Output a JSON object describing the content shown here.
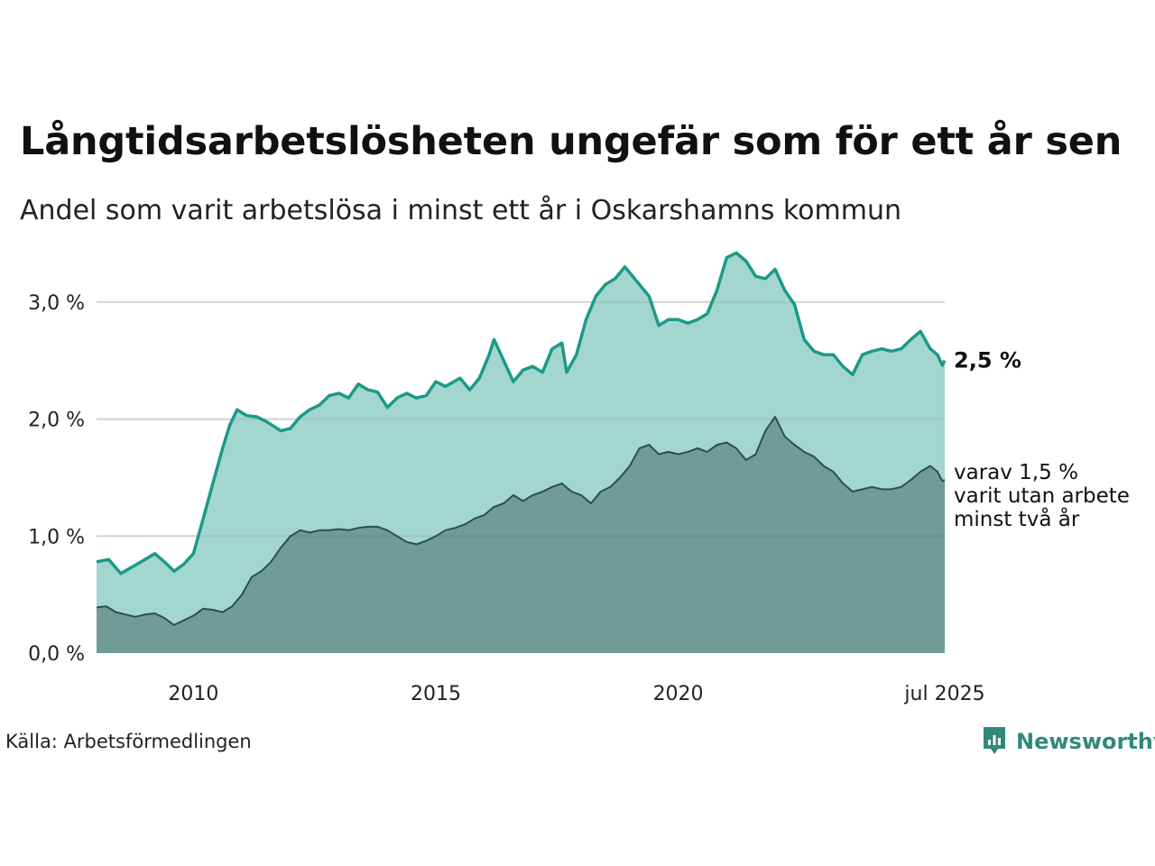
{
  "title": "Långtidsarbetslösheten ungefär som för ett år sen",
  "subtitle": "Andel som varit arbetslösa i minst ett år i Oskarshamns kommun",
  "source": "Källa: Arbetsförmedlingen",
  "logo_text": "Newsworthy",
  "colors": {
    "total_line": "#1a9a88",
    "total_fill": "#a4d6d0",
    "long_line": "#2c4f49",
    "long_fill": "#719c96",
    "grid": "#e0e0e0"
  },
  "end_labels": {
    "total": "2,5 %",
    "long_lines": [
      "varav 1,5 %",
      "varit utan arbete",
      "minst två år"
    ]
  },
  "chart_data": {
    "type": "area",
    "x_start": 2008.0,
    "x_end": 2025.5,
    "ylim": [
      0,
      3.5
    ],
    "yticks": [
      0,
      1,
      2,
      3
    ],
    "ytick_labels": [
      "0,0 %",
      "1,0 %",
      "2,0 %",
      "3,0 %"
    ],
    "xticks": [
      2010,
      2015,
      2020,
      2025.5
    ],
    "xtick_labels": [
      "2010",
      "2015",
      "2020",
      "jul 2025"
    ],
    "grid": "horizontal",
    "series": [
      {
        "key": "total",
        "points": [
          [
            2008.0,
            0.78
          ],
          [
            2008.25,
            0.8
          ],
          [
            2008.5,
            0.68
          ],
          [
            2008.75,
            0.74
          ],
          [
            2009.0,
            0.8
          ],
          [
            2009.2,
            0.85
          ],
          [
            2009.4,
            0.78
          ],
          [
            2009.6,
            0.7
          ],
          [
            2009.8,
            0.76
          ],
          [
            2010.0,
            0.85
          ],
          [
            2010.2,
            1.15
          ],
          [
            2010.4,
            1.45
          ],
          [
            2010.6,
            1.75
          ],
          [
            2010.75,
            1.95
          ],
          [
            2010.9,
            2.08
          ],
          [
            2011.1,
            2.03
          ],
          [
            2011.3,
            2.02
          ],
          [
            2011.5,
            1.98
          ],
          [
            2011.8,
            1.9
          ],
          [
            2012.0,
            1.92
          ],
          [
            2012.2,
            2.02
          ],
          [
            2012.4,
            2.08
          ],
          [
            2012.6,
            2.12
          ],
          [
            2012.8,
            2.2
          ],
          [
            2013.0,
            2.22
          ],
          [
            2013.2,
            2.18
          ],
          [
            2013.4,
            2.3
          ],
          [
            2013.6,
            2.25
          ],
          [
            2013.8,
            2.23
          ],
          [
            2014.0,
            2.1
          ],
          [
            2014.2,
            2.18
          ],
          [
            2014.4,
            2.22
          ],
          [
            2014.6,
            2.18
          ],
          [
            2014.8,
            2.2
          ],
          [
            2015.0,
            2.32
          ],
          [
            2015.2,
            2.28
          ],
          [
            2015.5,
            2.35
          ],
          [
            2015.7,
            2.25
          ],
          [
            2015.9,
            2.35
          ],
          [
            2016.1,
            2.55
          ],
          [
            2016.2,
            2.68
          ],
          [
            2016.4,
            2.5
          ],
          [
            2016.6,
            2.32
          ],
          [
            2016.8,
            2.42
          ],
          [
            2017.0,
            2.45
          ],
          [
            2017.2,
            2.4
          ],
          [
            2017.4,
            2.6
          ],
          [
            2017.6,
            2.65
          ],
          [
            2017.7,
            2.4
          ],
          [
            2017.9,
            2.55
          ],
          [
            2018.1,
            2.85
          ],
          [
            2018.3,
            3.05
          ],
          [
            2018.5,
            3.15
          ],
          [
            2018.7,
            3.2
          ],
          [
            2018.9,
            3.3
          ],
          [
            2019.0,
            3.25
          ],
          [
            2019.2,
            3.15
          ],
          [
            2019.4,
            3.05
          ],
          [
            2019.6,
            2.8
          ],
          [
            2019.8,
            2.85
          ],
          [
            2020.0,
            2.85
          ],
          [
            2020.2,
            2.82
          ],
          [
            2020.4,
            2.85
          ],
          [
            2020.6,
            2.9
          ],
          [
            2020.8,
            3.1
          ],
          [
            2021.0,
            3.38
          ],
          [
            2021.2,
            3.42
          ],
          [
            2021.4,
            3.35
          ],
          [
            2021.6,
            3.22
          ],
          [
            2021.8,
            3.2
          ],
          [
            2022.0,
            3.28
          ],
          [
            2022.2,
            3.1
          ],
          [
            2022.4,
            2.98
          ],
          [
            2022.6,
            2.68
          ],
          [
            2022.8,
            2.58
          ],
          [
            2023.0,
            2.55
          ],
          [
            2023.2,
            2.55
          ],
          [
            2023.4,
            2.45
          ],
          [
            2023.6,
            2.38
          ],
          [
            2023.8,
            2.55
          ],
          [
            2024.0,
            2.58
          ],
          [
            2024.2,
            2.6
          ],
          [
            2024.4,
            2.58
          ],
          [
            2024.6,
            2.6
          ],
          [
            2024.8,
            2.68
          ],
          [
            2025.0,
            2.75
          ],
          [
            2025.2,
            2.6
          ],
          [
            2025.35,
            2.55
          ],
          [
            2025.45,
            2.46
          ],
          [
            2025.5,
            2.5
          ]
        ]
      },
      {
        "key": "long",
        "points": [
          [
            2008.0,
            0.39
          ],
          [
            2008.2,
            0.4
          ],
          [
            2008.4,
            0.35
          ],
          [
            2008.6,
            0.33
          ],
          [
            2008.8,
            0.31
          ],
          [
            2009.0,
            0.33
          ],
          [
            2009.2,
            0.34
          ],
          [
            2009.4,
            0.3
          ],
          [
            2009.6,
            0.24
          ],
          [
            2009.8,
            0.28
          ],
          [
            2010.0,
            0.32
          ],
          [
            2010.2,
            0.38
          ],
          [
            2010.4,
            0.37
          ],
          [
            2010.6,
            0.35
          ],
          [
            2010.8,
            0.4
          ],
          [
            2011.0,
            0.5
          ],
          [
            2011.2,
            0.65
          ],
          [
            2011.4,
            0.7
          ],
          [
            2011.6,
            0.78
          ],
          [
            2011.8,
            0.9
          ],
          [
            2012.0,
            1.0
          ],
          [
            2012.2,
            1.05
          ],
          [
            2012.4,
            1.03
          ],
          [
            2012.6,
            1.05
          ],
          [
            2012.8,
            1.05
          ],
          [
            2013.0,
            1.06
          ],
          [
            2013.2,
            1.05
          ],
          [
            2013.4,
            1.07
          ],
          [
            2013.6,
            1.08
          ],
          [
            2013.8,
            1.08
          ],
          [
            2014.0,
            1.05
          ],
          [
            2014.2,
            1.0
          ],
          [
            2014.4,
            0.95
          ],
          [
            2014.6,
            0.93
          ],
          [
            2014.8,
            0.96
          ],
          [
            2015.0,
            1.0
          ],
          [
            2015.2,
            1.05
          ],
          [
            2015.4,
            1.07
          ],
          [
            2015.6,
            1.1
          ],
          [
            2015.8,
            1.15
          ],
          [
            2016.0,
            1.18
          ],
          [
            2016.2,
            1.25
          ],
          [
            2016.4,
            1.28
          ],
          [
            2016.6,
            1.35
          ],
          [
            2016.8,
            1.3
          ],
          [
            2017.0,
            1.35
          ],
          [
            2017.2,
            1.38
          ],
          [
            2017.4,
            1.42
          ],
          [
            2017.6,
            1.45
          ],
          [
            2017.8,
            1.38
          ],
          [
            2018.0,
            1.35
          ],
          [
            2018.2,
            1.28
          ],
          [
            2018.4,
            1.38
          ],
          [
            2018.6,
            1.42
          ],
          [
            2018.8,
            1.5
          ],
          [
            2019.0,
            1.6
          ],
          [
            2019.2,
            1.75
          ],
          [
            2019.4,
            1.78
          ],
          [
            2019.6,
            1.7
          ],
          [
            2019.8,
            1.72
          ],
          [
            2020.0,
            1.7
          ],
          [
            2020.2,
            1.72
          ],
          [
            2020.4,
            1.75
          ],
          [
            2020.6,
            1.72
          ],
          [
            2020.8,
            1.78
          ],
          [
            2021.0,
            1.8
          ],
          [
            2021.2,
            1.75
          ],
          [
            2021.4,
            1.65
          ],
          [
            2021.6,
            1.7
          ],
          [
            2021.8,
            1.9
          ],
          [
            2022.0,
            2.02
          ],
          [
            2022.2,
            1.85
          ],
          [
            2022.4,
            1.78
          ],
          [
            2022.6,
            1.72
          ],
          [
            2022.8,
            1.68
          ],
          [
            2023.0,
            1.6
          ],
          [
            2023.2,
            1.55
          ],
          [
            2023.4,
            1.45
          ],
          [
            2023.6,
            1.38
          ],
          [
            2023.8,
            1.4
          ],
          [
            2024.0,
            1.42
          ],
          [
            2024.2,
            1.4
          ],
          [
            2024.4,
            1.4
          ],
          [
            2024.6,
            1.42
          ],
          [
            2024.8,
            1.48
          ],
          [
            2025.0,
            1.55
          ],
          [
            2025.2,
            1.6
          ],
          [
            2025.35,
            1.55
          ],
          [
            2025.45,
            1.47
          ],
          [
            2025.5,
            1.48
          ]
        ]
      }
    ]
  }
}
